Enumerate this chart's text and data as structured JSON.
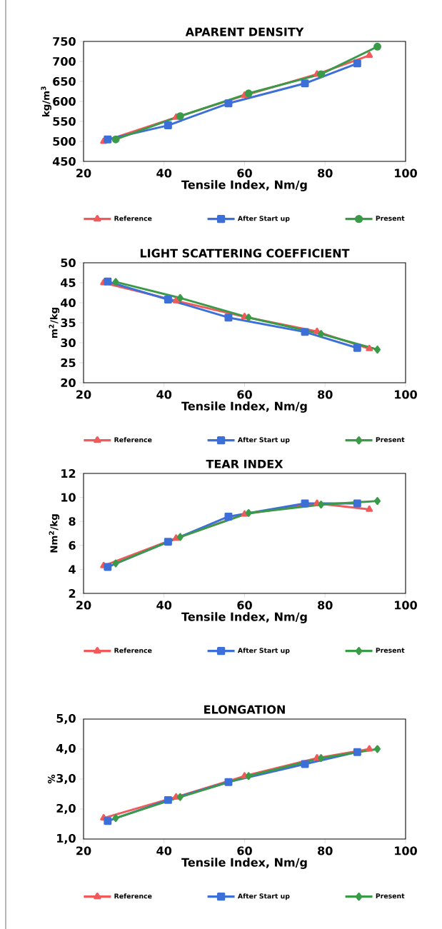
{
  "chart_data": [
    {
      "type": "line",
      "title": "APARENT DENSITY",
      "xlabel": "Tensile Index, Nm/g",
      "ylabel": "kg/m$^{3}$",
      "xlim": [
        20,
        100
      ],
      "xticks": [
        20,
        40,
        60,
        80,
        100
      ],
      "ylim": [
        450,
        750
      ],
      "yticks": [
        450,
        500,
        550,
        600,
        650,
        700,
        750
      ],
      "legend": "bottom",
      "grid": false,
      "line_style": "solid",
      "series": [
        {
          "name": "Reference",
          "color": "#f05a5a",
          "marker": "triangle",
          "x": [
            25,
            43,
            60,
            78,
            91
          ],
          "values": [
            500,
            560,
            615,
            668,
            715
          ]
        },
        {
          "name": "After Start up",
          "color": "#3d6fd8",
          "marker": "square",
          "x": [
            26,
            41,
            56,
            75,
            88
          ],
          "values": [
            505,
            540,
            595,
            645,
            695
          ]
        },
        {
          "name": "Present",
          "color": "#3a9a48",
          "marker": "circle",
          "x": [
            28,
            44,
            61,
            79,
            93
          ],
          "values": [
            505,
            563,
            620,
            668,
            737
          ]
        }
      ]
    },
    {
      "type": "line",
      "title": "LIGHT SCATTERING COEFFICIENT",
      "xlabel": "Tensile Index, Nm/g",
      "ylabel": "m$^{2}$/kg",
      "xlim": [
        20,
        100
      ],
      "xticks": [
        20,
        40,
        60,
        80,
        100
      ],
      "ylim": [
        20,
        50
      ],
      "yticks": [
        20,
        25,
        30,
        35,
        40,
        45,
        50
      ],
      "legend": "bottom",
      "grid": false,
      "line_style": "solid",
      "series": [
        {
          "name": "Reference",
          "color": "#f05a5a",
          "marker": "triangle",
          "x": [
            25,
            43,
            60,
            78,
            91
          ],
          "values": [
            45,
            40.5,
            36.5,
            32.8,
            28.5
          ]
        },
        {
          "name": "After Start up",
          "color": "#3d6fd8",
          "marker": "square",
          "x": [
            26,
            41,
            56,
            75,
            88
          ],
          "values": [
            45.3,
            40.8,
            36.3,
            32.7,
            28.7
          ]
        },
        {
          "name": "Present",
          "color": "#3a9a48",
          "marker": "diamond",
          "x": [
            28,
            44,
            61,
            79,
            93
          ],
          "values": [
            45.2,
            41.2,
            36.3,
            32.2,
            28.3
          ]
        }
      ]
    },
    {
      "type": "line",
      "title": "TEAR INDEX",
      "xlabel": "Tensile Index, Nm/g",
      "ylabel": "Nm$^{2}$/kg",
      "xlim": [
        20,
        100
      ],
      "xticks": [
        20,
        40,
        60,
        80,
        100
      ],
      "ylim": [
        2,
        12
      ],
      "yticks": [
        2,
        4,
        6,
        8,
        10,
        12
      ],
      "legend": "bottom",
      "grid": false,
      "line_style": "solid",
      "series": [
        {
          "name": "Reference",
          "color": "#f05a5a",
          "marker": "triangle",
          "x": [
            25,
            43,
            60,
            78,
            91
          ],
          "values": [
            4.3,
            6.6,
            8.6,
            9.5,
            9.0
          ]
        },
        {
          "name": "After Start up",
          "color": "#3d6fd8",
          "marker": "square",
          "x": [
            26,
            41,
            56,
            75,
            88
          ],
          "values": [
            4.2,
            6.3,
            8.4,
            9.5,
            9.5
          ]
        },
        {
          "name": "Present",
          "color": "#3a9a48",
          "marker": "diamond",
          "x": [
            28,
            44,
            61,
            79,
            93
          ],
          "values": [
            4.5,
            6.7,
            8.7,
            9.4,
            9.7
          ]
        }
      ]
    },
    {
      "type": "line",
      "title": "ELONGATION",
      "xlabel": "Tensile Index, Nm/g",
      "ylabel": "%",
      "xlim": [
        20,
        100
      ],
      "xticks": [
        20,
        40,
        60,
        80,
        100
      ],
      "ylim": [
        1,
        5
      ],
      "yticks": [
        {
          "value": 1,
          "label": "1,0"
        },
        {
          "value": 2,
          "label": "2,0"
        },
        {
          "value": 3,
          "label": "3,0"
        },
        {
          "value": 4,
          "label": "4,0"
        },
        {
          "value": 5,
          "label": "5,0"
        }
      ],
      "legend": "bottom",
      "grid": false,
      "line_style": "solid",
      "series": [
        {
          "name": "Reference",
          "color": "#f05a5a",
          "marker": "triangle",
          "x": [
            25,
            43,
            60,
            78,
            91
          ],
          "values": [
            1.7,
            2.4,
            3.1,
            3.7,
            4.0
          ]
        },
        {
          "name": "After Start up",
          "color": "#3d6fd8",
          "marker": "square",
          "x": [
            26,
            41,
            56,
            75,
            88
          ],
          "values": [
            1.6,
            2.3,
            2.9,
            3.5,
            3.9
          ]
        },
        {
          "name": "Present",
          "color": "#3a9a48",
          "marker": "diamond",
          "x": [
            28,
            44,
            61,
            79,
            93
          ],
          "values": [
            1.7,
            2.4,
            3.1,
            3.7,
            4.0
          ]
        }
      ]
    }
  ]
}
